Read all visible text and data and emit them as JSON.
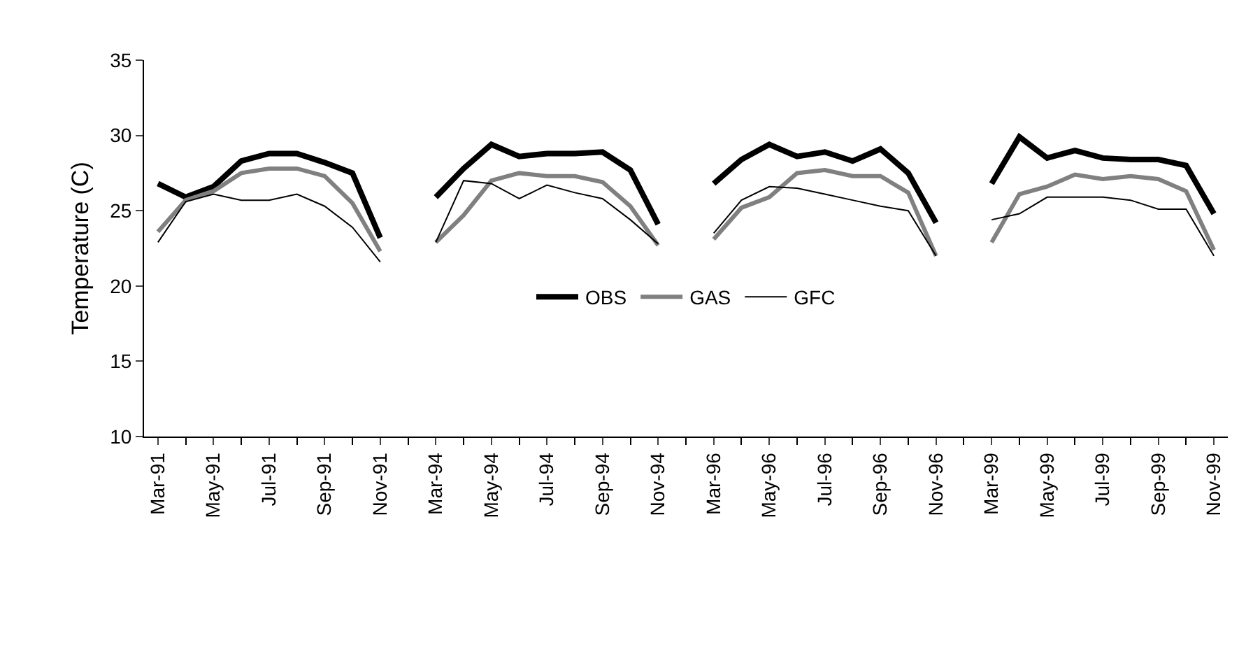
{
  "chart_data": {
    "type": "line",
    "ylabel": "Temperature (C)",
    "categories": [
      "Mar-91",
      null,
      "May-91",
      null,
      "Jul-91",
      null,
      "Sep-91",
      null,
      "Nov-91",
      null,
      "Mar-94",
      null,
      "May-94",
      null,
      "Jul-94",
      null,
      "Sep-94",
      null,
      "Nov-94",
      null,
      "Mar-96",
      null,
      "May-96",
      null,
      "Jul-96",
      null,
      "Sep-96",
      null,
      "Nov-96",
      null,
      "Mar-99",
      null,
      "May-99",
      null,
      "Jul-99",
      null,
      "Sep-99",
      null,
      "Nov-99"
    ],
    "series": [
      {
        "name": "OBS",
        "color": "#000000",
        "values": [
          26.8,
          25.9,
          26.6,
          28.3,
          28.8,
          28.8,
          28.2,
          27.5,
          23.2,
          null,
          25.9,
          27.8,
          29.4,
          28.6,
          28.8,
          28.8,
          28.9,
          27.7,
          24.1,
          null,
          26.8,
          28.4,
          29.4,
          28.6,
          28.9,
          28.3,
          29.1,
          27.5,
          24.2,
          null,
          26.8,
          29.9,
          28.5,
          29.0,
          28.5,
          28.4,
          28.4,
          28.0,
          24.8
        ]
      },
      {
        "name": "GAS",
        "color": "#808080",
        "values": [
          23.6,
          25.7,
          26.3,
          27.5,
          27.8,
          27.8,
          27.3,
          25.5,
          22.3,
          null,
          22.9,
          24.7,
          27.0,
          27.5,
          27.3,
          27.3,
          26.9,
          25.3,
          22.7,
          null,
          23.1,
          25.2,
          25.9,
          27.5,
          27.7,
          27.3,
          27.3,
          26.2,
          22.0,
          null,
          22.9,
          26.1,
          26.6,
          27.4,
          27.1,
          27.3,
          27.1,
          26.3,
          22.4
        ]
      },
      {
        "name": "GFC",
        "color": "#000000",
        "values": [
          22.9,
          25.6,
          26.1,
          25.7,
          25.7,
          26.1,
          25.3,
          23.9,
          21.6,
          null,
          22.9,
          27.0,
          26.8,
          25.8,
          26.7,
          26.2,
          25.8,
          24.4,
          22.8,
          null,
          23.5,
          25.7,
          26.6,
          26.5,
          26.1,
          25.7,
          25.3,
          25.0,
          22.0,
          null,
          24.4,
          24.8,
          25.9,
          25.9,
          25.9,
          25.7,
          25.1,
          25.1,
          22.0
        ]
      }
    ],
    "ylim": [
      10,
      35
    ],
    "yticks": [
      10,
      15,
      20,
      25,
      30,
      35
    ],
    "grid": false,
    "legend": "center",
    "marker": "none",
    "line_style": "solid"
  }
}
